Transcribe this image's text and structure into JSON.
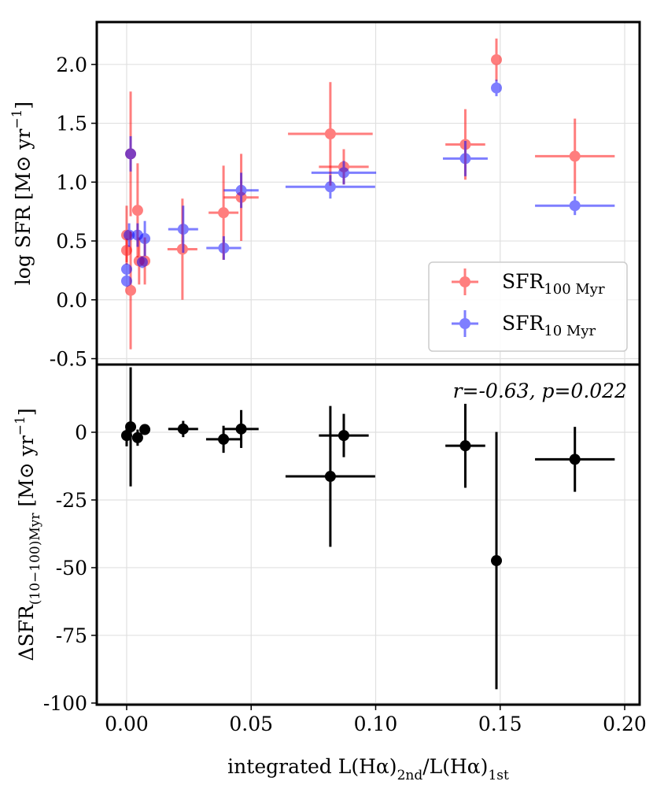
{
  "chart_data": [
    {
      "type": "scatter",
      "ylabel": [
        {
          "text": "log SFR [M"
        },
        {
          "text": "⊙"
        },
        {
          "text": " yr"
        },
        {
          "text": "−1",
          "sup": true
        },
        {
          "text": "]"
        }
      ],
      "xlim": [
        -0.012,
        0.206
      ],
      "xticks": [
        0,
        0.05,
        0.1,
        0.15,
        0.2
      ],
      "ylim": [
        -0.55,
        2.36
      ],
      "yticks": [
        {
          "value": -0.5,
          "label": "-0.5"
        },
        {
          "value": 0,
          "label": "0.0"
        },
        {
          "value": 0.5,
          "label": "0.5"
        },
        {
          "value": 1,
          "label": "1.0"
        },
        {
          "value": 1.5,
          "label": "1.5"
        },
        {
          "value": 2,
          "label": "2.0"
        }
      ],
      "grid": true,
      "legend": "lower right",
      "series": [
        {
          "name": "SFR",
          "subscript": "100 Myr",
          "color": "#ff0000",
          "x": [
            0.0,
            0.0,
            0.0016,
            0.0016,
            0.0044,
            0.005,
            0.0073,
            0.0224,
            0.0389,
            0.046,
            0.0818,
            0.0872,
            0.136,
            0.1485,
            0.18
          ],
          "y": [
            0.42,
            0.55,
            0.08,
            1.24,
            0.76,
            0.33,
            0.33,
            0.43,
            0.74,
            0.87,
            1.41,
            1.13,
            1.32,
            2.04,
            1.22
          ],
          "xerr": [
            null,
            null,
            null,
            null,
            null,
            null,
            null,
            0.006,
            0.006,
            0.007,
            0.017,
            0.01,
            0.008,
            null,
            0.016
          ],
          "yerr": [
            0.1,
            0.25,
            0.5,
            0.53,
            0.4,
            0.2,
            0.2,
            0.43,
            0.4,
            0.37,
            0.44,
            0.15,
            0.3,
            0.18,
            0.32
          ]
        },
        {
          "name": "SFR",
          "subscript": "10 Myr",
          "color": "#0000ff",
          "x": [
            0.0,
            0.0,
            0.001,
            0.0016,
            0.0044,
            0.0063,
            0.0073,
            0.0227,
            0.039,
            0.046,
            0.0818,
            0.0872,
            0.136,
            0.1485,
            0.18
          ],
          "y": [
            0.16,
            0.26,
            0.55,
            1.24,
            0.55,
            0.32,
            0.52,
            0.6,
            0.44,
            0.93,
            0.96,
            1.08,
            1.2,
            1.8,
            0.8
          ],
          "xerr": [
            null,
            null,
            null,
            null,
            null,
            null,
            null,
            0.006,
            0.007,
            0.007,
            0.018,
            0.013,
            0.009,
            null,
            0.016
          ],
          "yerr": [
            0.05,
            0.05,
            0.1,
            0.15,
            0.1,
            0.05,
            0.15,
            0.2,
            0.1,
            0.15,
            0.1,
            0.1,
            0.15,
            0.07,
            0.08
          ]
        }
      ]
    },
    {
      "type": "scatter",
      "ylabel": [
        {
          "text": "ΔSFR"
        },
        {
          "text": "(10−100)Myr",
          "sub": true
        },
        {
          "text": " [M"
        },
        {
          "text": "⊙"
        },
        {
          "text": " yr"
        },
        {
          "text": "−1",
          "sup": true
        },
        {
          "text": "]"
        }
      ],
      "xlabel": [
        {
          "text": "integrated L(Hα)"
        },
        {
          "text": "2nd",
          "sub": true
        },
        {
          "text": "/L(Hα)"
        },
        {
          "text": "1st",
          "sub": true
        }
      ],
      "annotation": "r=-0.63, p=0.022",
      "xlim": [
        -0.012,
        0.206
      ],
      "xticks": [
        {
          "value": 0,
          "label": "0.00"
        },
        {
          "value": 0.05,
          "label": "0.05"
        },
        {
          "value": 0.1,
          "label": "0.10"
        },
        {
          "value": 0.15,
          "label": "0.15"
        },
        {
          "value": 0.2,
          "label": "0.20"
        }
      ],
      "ylim": [
        -100.6,
        25
      ],
      "yticks": [
        -100,
        -75,
        -50,
        -25,
        0
      ],
      "grid": true,
      "series": [
        {
          "color": "#000000",
          "x": [
            0.0,
            0.0016,
            0.0044,
            0.0073,
            0.0227,
            0.0389,
            0.046,
            0.0872,
            0.0818,
            0.136,
            0.1485,
            0.18
          ],
          "y": [
            -1.2,
            2,
            -2,
            1,
            1.2,
            -2.6,
            1.2,
            -1.2,
            -16.3,
            -5,
            -47.4,
            -10
          ],
          "xerr": [
            null,
            null,
            null,
            null,
            0.006,
            0.007,
            0.007,
            0.01,
            0.018,
            0.008,
            null,
            0.016
          ],
          "yerr": [
            4,
            22,
            3,
            2,
            3,
            5,
            7,
            8,
            26,
            15.5,
            47.5,
            12
          ]
        }
      ]
    }
  ]
}
